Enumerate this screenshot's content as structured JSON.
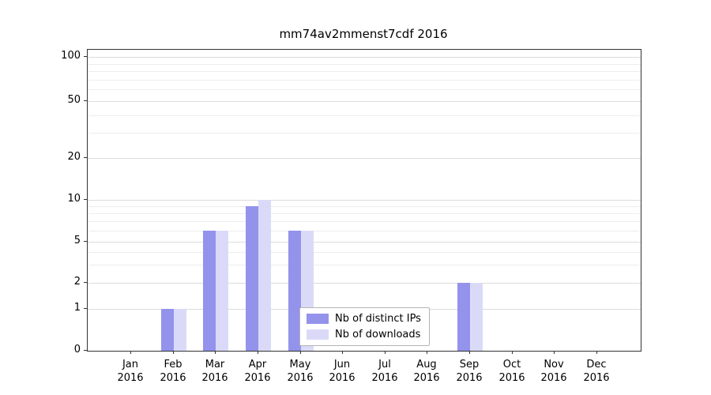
{
  "chart_data": {
    "type": "bar",
    "title": "mm74av2mmenst7cdf 2016",
    "year_label": "2016",
    "categories": [
      "Jan",
      "Feb",
      "Mar",
      "Apr",
      "May",
      "Jun",
      "Jul",
      "Aug",
      "Sep",
      "Oct",
      "Nov",
      "Dec"
    ],
    "series": [
      {
        "name": "Nb of distinct IPs",
        "color": "#9393ec",
        "values": [
          0,
          1,
          6,
          9,
          6,
          0,
          0,
          0,
          2,
          0,
          0,
          0
        ]
      },
      {
        "name": "Nb of downloads",
        "color": "#dadaf8",
        "values": [
          0,
          1,
          6,
          10,
          6,
          0,
          0,
          0,
          2,
          0,
          0,
          0
        ]
      }
    ],
    "yticks": [
      0,
      1,
      2,
      5,
      10,
      20,
      50,
      100
    ],
    "minor_yticks": [
      3,
      4,
      6,
      7,
      8,
      9,
      30,
      40,
      60,
      70,
      80,
      90
    ],
    "xlabel": "",
    "ylabel": "",
    "ylim": [
      0,
      100
    ],
    "yscale": "symlog",
    "grid": true,
    "legend_position": "lower center"
  }
}
